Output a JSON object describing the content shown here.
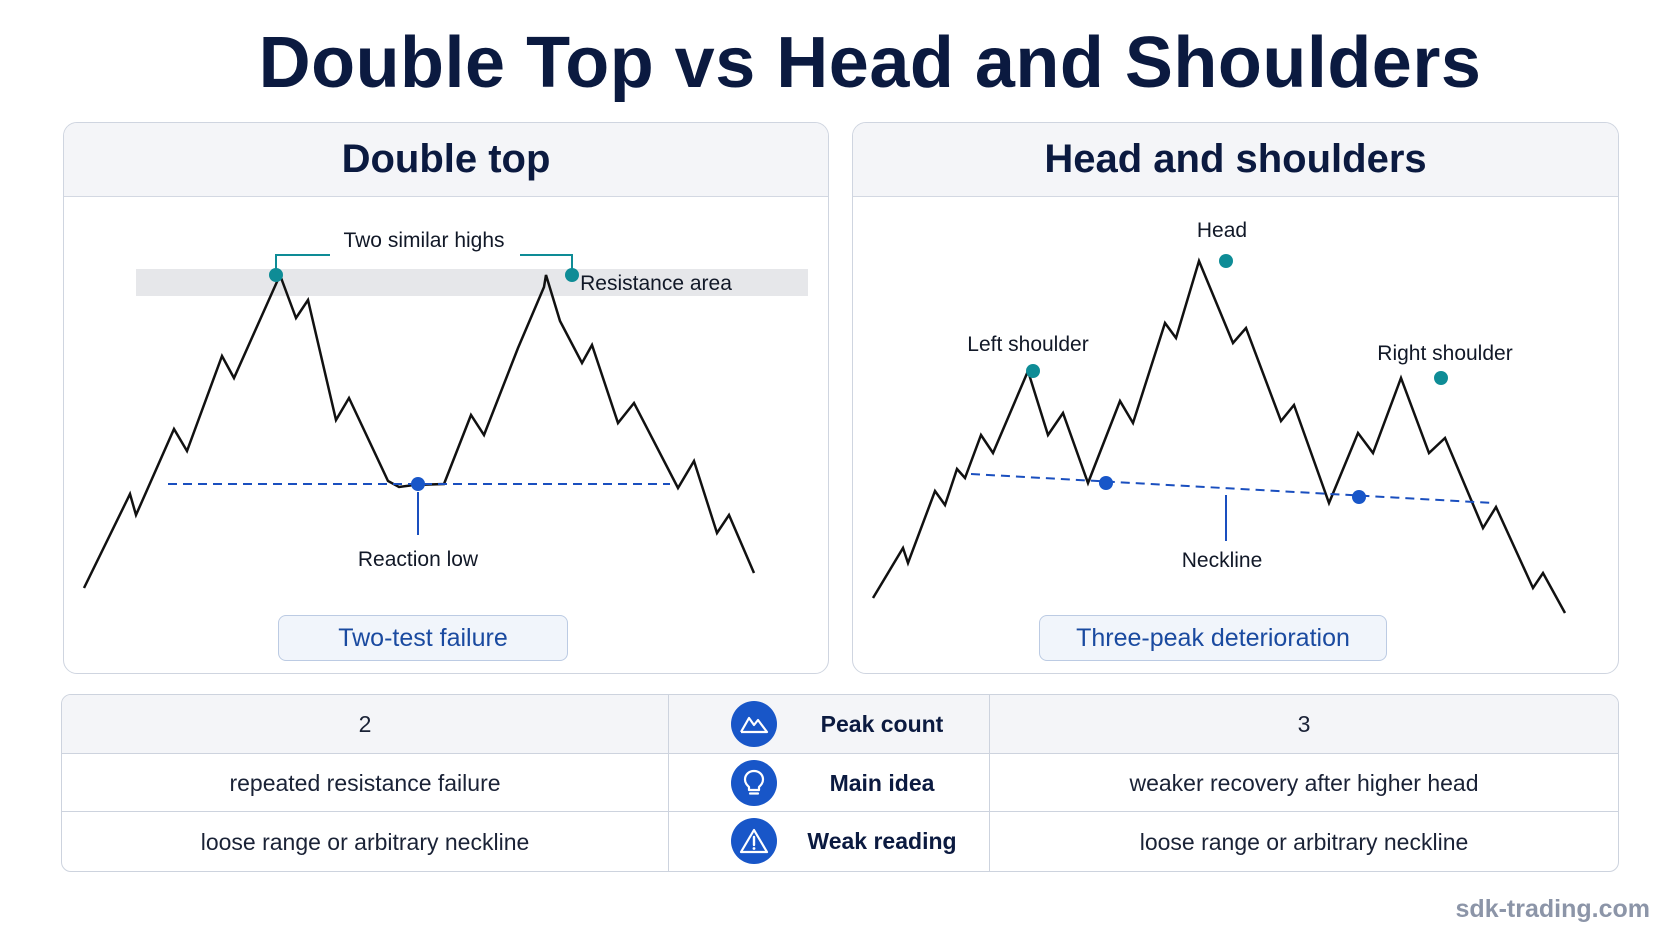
{
  "title": "Double Top vs Head and Shoulders",
  "left_panel": {
    "heading": "Double top",
    "label_highs": "Two similar highs",
    "label_resistance": "Resistance area",
    "label_low": "Reaction low",
    "pill": "Two-test failure"
  },
  "right_panel": {
    "heading": "Head and shoulders",
    "label_head": "Head",
    "label_left_shoulder": "Left shoulder",
    "label_right_shoulder": "Right shoulder",
    "label_neckline": "Neckline",
    "pill": "Three-peak deterioration"
  },
  "comparison": {
    "rows": [
      {
        "left": "2",
        "icon": "mountain-peak-icon",
        "label": "Peak count",
        "right": "3"
      },
      {
        "left": "repeated resistance failure",
        "icon": "lightbulb-icon",
        "label": "Main idea",
        "right": "weaker recovery after higher head"
      },
      {
        "left": "loose range or arbitrary neckline",
        "icon": "warning-triangle-icon",
        "label": "Weak reading",
        "right": "loose range or arbitrary neckline"
      }
    ]
  },
  "footer": "sdk-trading.com",
  "colors": {
    "title": "#0b1a40",
    "peak_marker": "#0e8c96",
    "low_marker": "#1856c8",
    "neckline": "#1a4fbf",
    "icon_circle": "#1856c8",
    "price_line": "#111111"
  }
}
